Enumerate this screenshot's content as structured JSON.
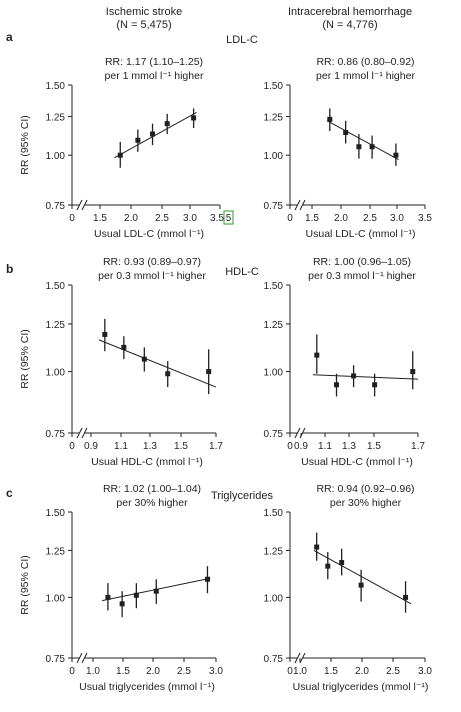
{
  "headers": {
    "left_title": "Ischemic stroke",
    "left_n": "(N = 5,475)",
    "right_title": "Intracerebral hemorrhage",
    "right_n": "(N = 4,776)"
  },
  "sections": [
    {
      "label": "a",
      "title": "LDL-C"
    },
    {
      "label": "b",
      "title": "HDL-C"
    },
    {
      "label": "c",
      "title": "Triglycerides"
    }
  ],
  "y_axis_label": "RR (95% CI)",
  "chart_data": [
    {
      "type": "scatter",
      "id": "ldl-ischemic",
      "section": "a",
      "annotation_lines": [
        "RR: 1.17 (1.10–1.25)",
        "per 1 mmol l⁻¹ higher"
      ],
      "xlabel": "Usual LDL-C (mmol l⁻¹)",
      "ylabel": "RR (95% CI)",
      "xlim": [
        1.25,
        3.5
      ],
      "ylim": [
        0.75,
        1.5
      ],
      "y_scale": "log",
      "x_ticks": [
        "0",
        "1.5",
        "2.0",
        "2.5",
        "3.0",
        "3.5"
      ],
      "y_ticks": [
        "0.75",
        "1.00",
        "1.25",
        "1.50"
      ],
      "points": [
        {
          "x": 1.8,
          "y": 1.0,
          "lo": 0.93,
          "hi": 1.08
        },
        {
          "x": 2.1,
          "y": 1.09,
          "lo": 1.02,
          "hi": 1.16
        },
        {
          "x": 2.35,
          "y": 1.13,
          "lo": 1.06,
          "hi": 1.2
        },
        {
          "x": 2.6,
          "y": 1.2,
          "lo": 1.13,
          "hi": 1.27
        },
        {
          "x": 3.05,
          "y": 1.24,
          "lo": 1.17,
          "hi": 1.31
        }
      ],
      "fit": [
        [
          1.7,
          0.985
        ],
        [
          3.1,
          1.28
        ]
      ],
      "highlight_tick": "5"
    },
    {
      "type": "scatter",
      "id": "ldl-ich",
      "section": "a",
      "annotation_lines": [
        "RR: 0.86 (0.80–0.92)",
        "per 1 mmol l⁻¹ higher"
      ],
      "xlabel": "Usual LDL-C (mmol l⁻¹)",
      "ylabel": "",
      "xlim": [
        1.25,
        3.5
      ],
      "ylim": [
        0.75,
        1.5
      ],
      "y_scale": "log",
      "x_ticks": [
        "0",
        "1.5",
        "2.0",
        "2.5",
        "3.0",
        "3.5"
      ],
      "y_ticks": [
        "0.75",
        "1.00",
        "1.25",
        "1.50"
      ],
      "points": [
        {
          "x": 1.7,
          "y": 1.23,
          "lo": 1.15,
          "hi": 1.31
        },
        {
          "x": 2.0,
          "y": 1.14,
          "lo": 1.07,
          "hi": 1.22
        },
        {
          "x": 2.25,
          "y": 1.05,
          "lo": 0.98,
          "hi": 1.13
        },
        {
          "x": 2.5,
          "y": 1.05,
          "lo": 0.98,
          "hi": 1.12
        },
        {
          "x": 2.95,
          "y": 1.0,
          "lo": 0.94,
          "hi": 1.07
        }
      ],
      "fit": [
        [
          1.65,
          1.22
        ],
        [
          3.0,
          0.975
        ]
      ]
    },
    {
      "type": "scatter",
      "id": "hdl-ischemic",
      "section": "b",
      "annotation_lines": [
        "RR: 0.93 (0.89–0.97)",
        "per 0.3 mmol l⁻¹ higher"
      ],
      "xlabel": "Usual HDL-C (mmol l⁻¹)",
      "ylabel": "RR (95% CI)",
      "xlim": [
        0.825,
        1.7
      ],
      "ylim": [
        0.75,
        1.5
      ],
      "y_scale": "log",
      "x_ticks": [
        "0",
        "0.9",
        "1.1",
        "1.3",
        "1.5",
        "1.7"
      ],
      "y_ticks": [
        "0.75",
        "1.00",
        "1.25",
        "1.50"
      ],
      "points": [
        {
          "x": 0.94,
          "y": 1.19,
          "lo": 1.1,
          "hi": 1.28
        },
        {
          "x": 1.07,
          "y": 1.12,
          "lo": 1.06,
          "hi": 1.18
        },
        {
          "x": 1.21,
          "y": 1.06,
          "lo": 1.0,
          "hi": 1.12
        },
        {
          "x": 1.37,
          "y": 0.99,
          "lo": 0.93,
          "hi": 1.05
        },
        {
          "x": 1.65,
          "y": 1.0,
          "lo": 0.9,
          "hi": 1.11
        }
      ],
      "fit": [
        [
          0.9,
          1.16
        ],
        [
          1.7,
          0.93
        ]
      ]
    },
    {
      "type": "scatter",
      "id": "hdl-ich",
      "section": "b",
      "annotation_lines": [
        "RR: 1.00 (0.96–1.05)",
        "per 0.3 mmol l⁻¹ higher"
      ],
      "xlabel": "Usual HDL-C (mmol l⁻¹)",
      "ylabel": "",
      "xlim": [
        0.825,
        1.7
      ],
      "ylim": [
        0.75,
        1.5
      ],
      "y_scale": "log",
      "x_ticks": [
        "0",
        "0.9",
        "1.1",
        "1.3",
        "1.5",
        "1.7"
      ],
      "y_ticks": [
        "0.75",
        "1.00",
        "1.25",
        "1.50"
      ],
      "points": [
        {
          "x": 0.93,
          "y": 1.08,
          "lo": 0.99,
          "hi": 1.19
        },
        {
          "x": 1.08,
          "y": 0.94,
          "lo": 0.89,
          "hi": 0.99
        },
        {
          "x": 1.21,
          "y": 0.98,
          "lo": 0.93,
          "hi": 1.03
        },
        {
          "x": 1.37,
          "y": 0.94,
          "lo": 0.89,
          "hi": 0.99
        },
        {
          "x": 1.66,
          "y": 1.0,
          "lo": 0.92,
          "hi": 1.1
        }
      ],
      "fit": [
        [
          0.9,
          0.985
        ],
        [
          1.7,
          0.965
        ]
      ]
    },
    {
      "type": "scatter",
      "id": "tg-ischemic",
      "section": "c",
      "annotation_lines": [
        "RR: 1.02 (1.00–1.04)",
        "per 30% higher"
      ],
      "xlabel": "Usual triglycerides (mmol l⁻¹)",
      "ylabel": "RR (95% CI)",
      "xlim": [
        0.75,
        3.0
      ],
      "ylim": [
        0.75,
        1.5
      ],
      "y_scale": "log",
      "x_ticks": [
        "0",
        "1.0",
        "1.5",
        "2.0",
        "2.5",
        "3.0"
      ],
      "y_ticks": [
        "0.75",
        "1.00",
        "1.25",
        "1.50"
      ],
      "points": [
        {
          "x": 1.1,
          "y": 1.0,
          "lo": 0.94,
          "hi": 1.07
        },
        {
          "x": 1.35,
          "y": 0.97,
          "lo": 0.91,
          "hi": 1.03
        },
        {
          "x": 1.6,
          "y": 1.01,
          "lo": 0.95,
          "hi": 1.07
        },
        {
          "x": 1.95,
          "y": 1.03,
          "lo": 0.97,
          "hi": 1.09
        },
        {
          "x": 2.85,
          "y": 1.09,
          "lo": 1.02,
          "hi": 1.16
        }
      ],
      "fit": [
        [
          1.0,
          0.985
        ],
        [
          2.9,
          1.095
        ]
      ]
    },
    {
      "type": "scatter",
      "id": "tg-ich",
      "section": "c",
      "annotation_lines": [
        "RR: 0.94 (0.92–0.96)",
        "per 30% higher"
      ],
      "xlabel": "Usual triglycerides (mmol l⁻¹)",
      "ylabel": "",
      "xlim": [
        0.75,
        3.0
      ],
      "ylim": [
        0.75,
        1.5
      ],
      "y_scale": "log",
      "x_ticks": [
        "0",
        "1.0",
        "1.5",
        "2.0",
        "2.5",
        "3.0"
      ],
      "y_ticks": [
        "0.75",
        "1.00",
        "1.25",
        "1.50"
      ],
      "points": [
        {
          "x": 1.05,
          "y": 1.27,
          "lo": 1.19,
          "hi": 1.36
        },
        {
          "x": 1.25,
          "y": 1.16,
          "lo": 1.09,
          "hi": 1.24
        },
        {
          "x": 1.5,
          "y": 1.18,
          "lo": 1.11,
          "hi": 1.26
        },
        {
          "x": 1.85,
          "y": 1.06,
          "lo": 0.98,
          "hi": 1.14
        },
        {
          "x": 2.65,
          "y": 1.0,
          "lo": 0.93,
          "hi": 1.08
        }
      ],
      "fit": [
        [
          1.0,
          1.25
        ],
        [
          2.75,
          0.97
        ]
      ]
    }
  ]
}
